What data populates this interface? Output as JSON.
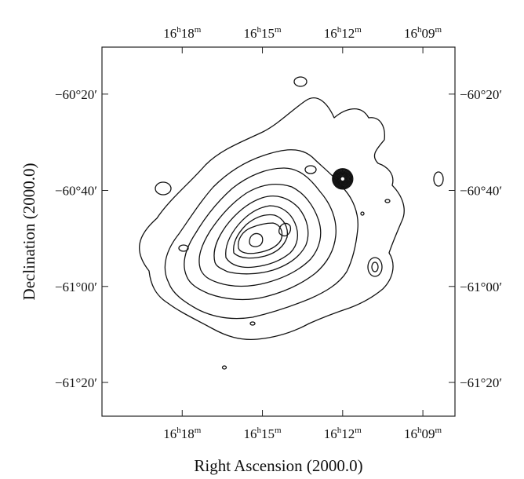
{
  "chart_data": {
    "type": "contour",
    "title": "",
    "xlabel": "Right Ascension (2000.0)",
    "ylabel": "Declination (2000.0)",
    "x_axis": {
      "unit": "RA (hours)",
      "range": [
        16.35,
        16.13
      ],
      "ticks": [
        {
          "value": 16.3,
          "h": "16",
          "m": "18"
        },
        {
          "value": 16.25,
          "h": "16",
          "m": "15"
        },
        {
          "value": 16.2,
          "h": "16",
          "m": "12"
        },
        {
          "value": 16.15,
          "h": "16",
          "m": "09"
        }
      ]
    },
    "y_axis": {
      "unit": "Dec (degrees)",
      "range": [
        -61.45,
        -60.17
      ],
      "ticks": [
        {
          "value": -60.333,
          "label": "−60°20′"
        },
        {
          "value": -60.667,
          "label": "−60°40′"
        },
        {
          "value": -61.0,
          "label": "−61°00′"
        },
        {
          "value": -61.333,
          "label": "−61°20′"
        }
      ]
    },
    "extended_source": {
      "center_ra": 16.235,
      "center_dec": -60.89,
      "contour_levels": 9,
      "orientation": "elongated from lower-left to upper-right"
    },
    "point_sources": [
      {
        "ra": 16.2,
        "dec": -60.627,
        "note": "bright compact source"
      },
      {
        "ra": 16.195,
        "dec": -60.985,
        "note": "compact source"
      }
    ],
    "grid": false,
    "legend": "none"
  }
}
